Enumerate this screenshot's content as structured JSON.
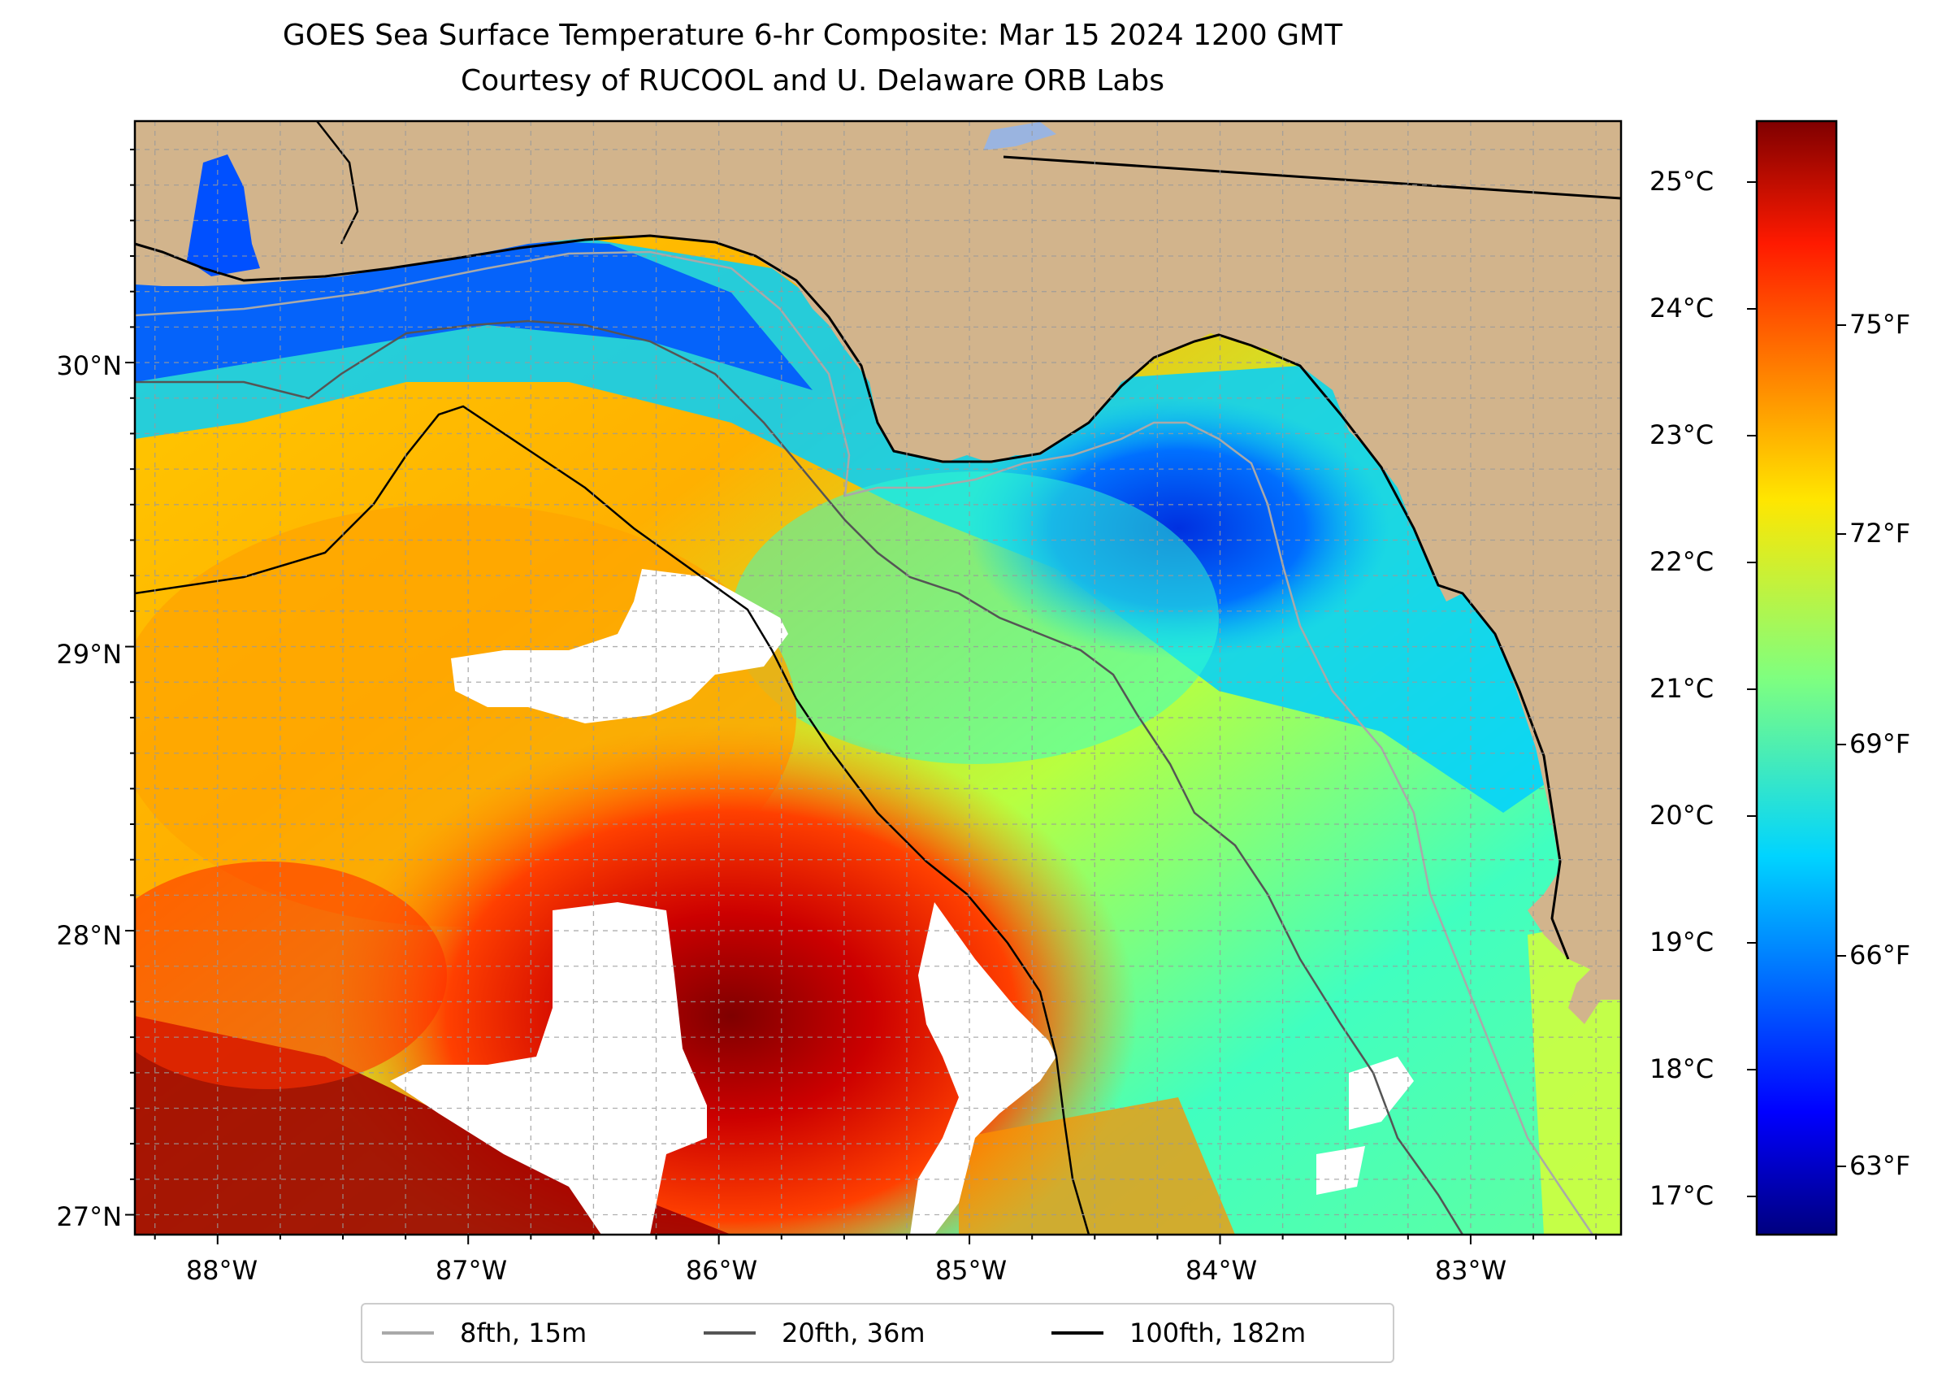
{
  "title": {
    "line1": "GOES Sea Surface Temperature 6-hr Composite: Mar 15 2024 1200 GMT",
    "line2": "Courtesy of RUCOOL and U. Delaware ORB Labs"
  },
  "map": {
    "extent": {
      "lon_min": -88.33,
      "lon_max": -82.4,
      "lat_min": 26.93,
      "lat_max": 30.85
    },
    "land_color": "#d2b48c",
    "cloud_color": "#ffffff",
    "grid": "dashed",
    "lat_labels": [
      "30°N",
      "29°N",
      "28°N",
      "27°N"
    ],
    "lon_labels": [
      "88°W",
      "87°W",
      "86°W",
      "85°W",
      "84°W",
      "83°W"
    ]
  },
  "colorbar": {
    "colormap": "jet",
    "celsius_labels": [
      "25°C",
      "24°C",
      "23°C",
      "22°C",
      "21°C",
      "20°C",
      "19°C",
      "18°C",
      "17°C"
    ],
    "fahrenheit_labels": [
      "75°F",
      "72°F",
      "69°F",
      "66°F",
      "63°F"
    ]
  },
  "legend": {
    "placement": "bottom-center",
    "items": [
      {
        "label": "8fth, 15m",
        "color": "#a9a9a9"
      },
      {
        "label": "20fth, 36m",
        "color": "#555555"
      },
      {
        "label": "100fth, 182m",
        "color": "#000000"
      }
    ]
  }
}
